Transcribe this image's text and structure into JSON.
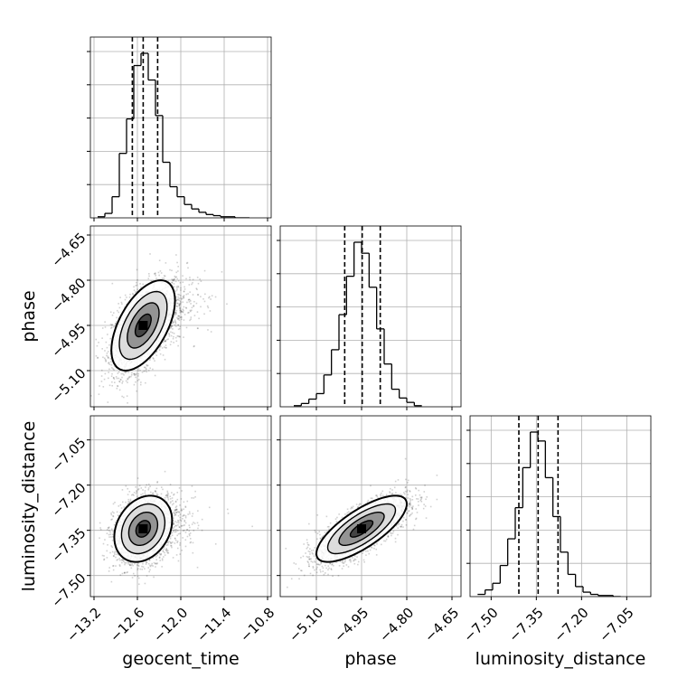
{
  "chart_data": {
    "type": "corner",
    "parameters": [
      "geocent_time",
      "phase",
      "luminosity_distance"
    ],
    "ranges": {
      "geocent_time": [
        -13.25,
        -10.75
      ],
      "phase": [
        -5.22,
        -4.62
      ],
      "luminosity_distance": [
        -7.57,
        -6.97
      ]
    },
    "ticks": {
      "geocent_time": [
        -13.2,
        -12.6,
        -12.0,
        -11.4,
        -10.8
      ],
      "phase": [
        -5.1,
        -4.95,
        -4.8,
        -4.65
      ],
      "luminosity_distance": [
        -7.5,
        -7.35,
        -7.2,
        -7.05
      ]
    },
    "tick_labels": {
      "geocent_time": [
        "−13.2",
        "−12.6",
        "−12.0",
        "−11.4",
        "−10.8"
      ],
      "phase": [
        "−5.10",
        "−4.95",
        "−4.80",
        "−4.65"
      ],
      "luminosity_distance": [
        "−7.50",
        "−7.35",
        "−7.20",
        "−7.05"
      ]
    },
    "quantiles": {
      "geocent_time": [
        -12.67,
        -12.52,
        -12.32
      ],
      "phase": [
        -5.006,
        -4.948,
        -4.888
      ],
      "luminosity_distance": [
        -7.408,
        -7.344,
        -7.278
      ]
    },
    "histograms": {
      "geocent_time": {
        "bin_edges": [
          -13.15,
          -13.05,
          -12.95,
          -12.85,
          -12.75,
          -12.65,
          -12.55,
          -12.45,
          -12.35,
          -12.25,
          -12.15,
          -12.05,
          -11.95,
          -11.85,
          -11.75,
          -11.65,
          -11.55,
          -11.45,
          -11.35,
          -11.25,
          -11.15,
          -11.05
        ],
        "counts": [
          1,
          4,
          19,
          58,
          89,
          137,
          148,
          124,
          92,
          50,
          28,
          19,
          12,
          8,
          5,
          3,
          2,
          1,
          1,
          0,
          0
        ]
      },
      "phase": {
        "bin_edges": [
          -5.175,
          -5.15,
          -5.125,
          -5.1,
          -5.075,
          -5.05,
          -5.025,
          -5.0,
          -4.975,
          -4.95,
          -4.925,
          -4.9,
          -4.875,
          -4.85,
          -4.825,
          -4.8,
          -4.775,
          -4.75
        ],
        "counts": [
          1,
          3,
          7,
          12,
          29,
          52,
          84,
          119,
          150,
          140,
          109,
          71,
          39,
          16,
          8,
          4,
          1
        ]
      },
      "luminosity_distance": {
        "bin_edges": [
          -7.545,
          -7.52,
          -7.495,
          -7.47,
          -7.445,
          -7.42,
          -7.395,
          -7.37,
          -7.345,
          -7.32,
          -7.295,
          -7.27,
          -7.245,
          -7.22,
          -7.195,
          -7.17,
          -7.145,
          -7.12,
          -7.095,
          -7.07
        ],
        "counts": [
          2,
          6,
          12,
          28,
          52,
          80,
          116,
          148,
          140,
          107,
          72,
          40,
          20,
          9,
          4,
          2,
          1,
          1,
          0
        ]
      }
    },
    "pairs": [
      {
        "x": "geocent_time",
        "y": "phase",
        "center": [
          -12.52,
          -4.95
        ],
        "spread": [
          0.22,
          0.075
        ],
        "correlation": 0.55
      },
      {
        "x": "geocent_time",
        "y": "luminosity_distance",
        "center": [
          -12.52,
          -7.345
        ],
        "spread": [
          0.2,
          0.055
        ],
        "correlation": 0.25
      },
      {
        "x": "phase",
        "y": "luminosity_distance",
        "center": [
          -4.95,
          -7.345
        ],
        "spread": [
          0.075,
          0.055
        ],
        "correlation": 0.75
      }
    ],
    "contour_levels_sigma": [
      0.5,
      1.0,
      1.5,
      2.0
    ],
    "grid": true,
    "colors": {
      "samples": "#000000",
      "contour": "#000000",
      "quantile_line": "#000000",
      "grid": "#b0b0b0"
    }
  }
}
